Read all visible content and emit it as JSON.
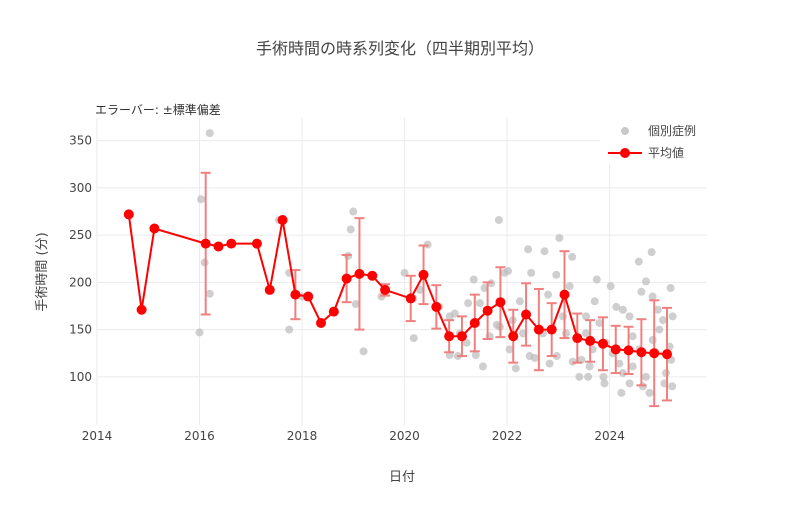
{
  "chart_data": {
    "type": "line",
    "title": "手術時間の時系列変化（四半期別平均）",
    "annotation": "エラーバー: ±標準偏差",
    "xlabel": "日付",
    "ylabel": "手術時間 (分)",
    "xlim": [
      2014,
      2025.9
    ],
    "ylim": [
      49,
      374
    ],
    "xticks": [
      2014,
      2016,
      2018,
      2020,
      2022,
      2024
    ],
    "yticks": [
      100,
      150,
      200,
      250,
      300,
      350
    ],
    "grid": true,
    "legend_position": "top-right",
    "colors": {
      "mean": "#ff0000",
      "error": "#f08080",
      "cases": "#bbbbbb"
    },
    "series": [
      {
        "name": "個別症例",
        "mode": "markers",
        "points": [
          [
            2016.2,
            358
          ],
          [
            2016.03,
            288
          ],
          [
            2016.1,
            221
          ],
          [
            2016.2,
            188
          ],
          [
            2016.0,
            147
          ],
          [
            2017.75,
            210
          ],
          [
            2017.75,
            150
          ],
          [
            2017.55,
            266
          ],
          [
            2018.0,
            185
          ],
          [
            2019.0,
            275
          ],
          [
            2018.95,
            256
          ],
          [
            2019.05,
            177
          ],
          [
            2019.2,
            127
          ],
          [
            2018.9,
            228
          ],
          [
            2019.55,
            185
          ],
          [
            2020.0,
            210
          ],
          [
            2020.17,
            183
          ],
          [
            2020.18,
            141
          ],
          [
            2020.45,
            240
          ],
          [
            2020.3,
            192
          ],
          [
            2020.68,
            174
          ],
          [
            2020.88,
            164
          ],
          [
            2020.98,
            167
          ],
          [
            2020.88,
            123
          ],
          [
            2021.04,
            122
          ],
          [
            2021.08,
            146
          ],
          [
            2021.21,
            136
          ],
          [
            2021.24,
            178
          ],
          [
            2021.35,
            203
          ],
          [
            2021.39,
            123
          ],
          [
            2021.47,
            178
          ],
          [
            2021.53,
            111
          ],
          [
            2021.56,
            194
          ],
          [
            2021.66,
            143
          ],
          [
            2021.69,
            199
          ],
          [
            2021.84,
            266
          ],
          [
            2021.8,
            155
          ],
          [
            2021.86,
            153
          ],
          [
            2021.95,
            210
          ],
          [
            2022.02,
            212
          ],
          [
            2022.05,
            129
          ],
          [
            2022.11,
            160
          ],
          [
            2022.17,
            109
          ],
          [
            2022.25,
            180
          ],
          [
            2022.31,
            146
          ],
          [
            2022.41,
            235
          ],
          [
            2022.44,
            122
          ],
          [
            2022.47,
            210
          ],
          [
            2022.54,
            120
          ],
          [
            2022.7,
            146
          ],
          [
            2022.73,
            233
          ],
          [
            2022.8,
            187
          ],
          [
            2022.83,
            114
          ],
          [
            2022.96,
            208
          ],
          [
            2022.97,
            122
          ],
          [
            2023.02,
            247
          ],
          [
            2023.09,
            164
          ],
          [
            2023.15,
            146
          ],
          [
            2023.22,
            196
          ],
          [
            2023.27,
            227
          ],
          [
            2023.28,
            116
          ],
          [
            2023.41,
            100
          ],
          [
            2023.45,
            118
          ],
          [
            2023.54,
            164
          ],
          [
            2023.54,
            146
          ],
          [
            2023.58,
            100
          ],
          [
            2023.61,
            111
          ],
          [
            2023.67,
            129
          ],
          [
            2023.71,
            180
          ],
          [
            2023.75,
            203
          ],
          [
            2023.8,
            157
          ],
          [
            2023.88,
            100
          ],
          [
            2023.9,
            93
          ],
          [
            2023.93,
            136
          ],
          [
            2024.02,
            196
          ],
          [
            2024.06,
            125
          ],
          [
            2024.13,
            174
          ],
          [
            2024.19,
            114
          ],
          [
            2024.23,
            83
          ],
          [
            2024.26,
            171
          ],
          [
            2024.26,
            104
          ],
          [
            2024.39,
            164
          ],
          [
            2024.39,
            93
          ],
          [
            2024.45,
            111
          ],
          [
            2024.45,
            143
          ],
          [
            2024.57,
            222
          ],
          [
            2024.58,
            129
          ],
          [
            2024.62,
            190
          ],
          [
            2024.65,
            90
          ],
          [
            2024.71,
            201
          ],
          [
            2024.71,
            100
          ],
          [
            2024.78,
            83
          ],
          [
            2024.82,
            232
          ],
          [
            2024.84,
            185
          ],
          [
            2024.84,
            139
          ],
          [
            2024.94,
            171
          ],
          [
            2024.97,
            150
          ],
          [
            2025.04,
            160
          ],
          [
            2025.07,
            93
          ],
          [
            2025.1,
            104
          ],
          [
            2025.17,
            132
          ],
          [
            2025.19,
            194
          ],
          [
            2025.2,
            118
          ],
          [
            2025.22,
            90
          ],
          [
            2025.23,
            164
          ]
        ]
      },
      {
        "name": "平均値",
        "mode": "lines+markers",
        "x": [
          2014.62,
          2014.87,
          2015.12,
          2016.12,
          2016.37,
          2016.62,
          2017.12,
          2017.37,
          2017.62,
          2017.87,
          2018.12,
          2018.37,
          2018.62,
          2018.87,
          2019.12,
          2019.37,
          2019.62,
          2020.12,
          2020.37,
          2020.62,
          2020.87,
          2021.12,
          2021.37,
          2021.62,
          2021.87,
          2022.12,
          2022.37,
          2022.62,
          2022.87,
          2023.12,
          2023.37,
          2023.62,
          2023.87,
          2024.12,
          2024.37,
          2024.62,
          2024.87,
          2025.12
        ],
        "y": [
          272,
          171,
          257,
          241,
          238,
          241,
          241,
          192,
          266,
          187,
          185,
          157,
          169,
          204,
          209,
          207,
          192,
          183,
          208,
          174,
          143,
          143,
          157,
          170,
          179,
          143,
          166,
          150,
          150,
          187,
          141,
          138,
          135,
          129,
          128,
          126,
          125,
          124
        ],
        "sd": [
          null,
          null,
          null,
          75,
          null,
          null,
          null,
          null,
          null,
          26,
          null,
          null,
          null,
          25,
          59,
          null,
          6,
          24,
          31,
          23,
          17,
          21,
          30,
          30,
          37,
          28,
          33,
          43,
          28,
          46,
          26,
          22,
          28,
          25,
          25,
          35,
          56,
          49
        ]
      }
    ]
  }
}
